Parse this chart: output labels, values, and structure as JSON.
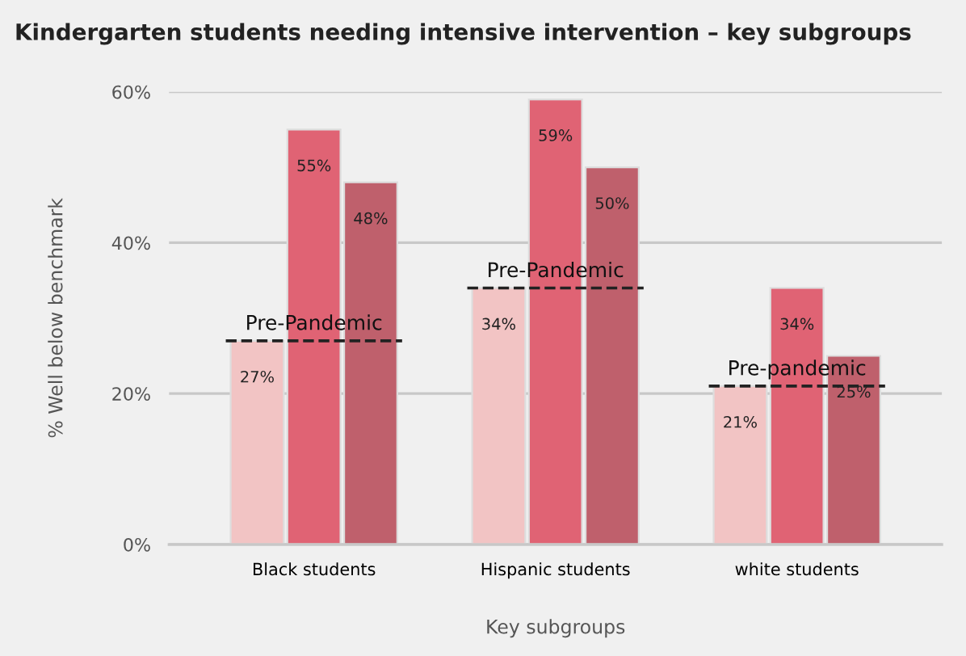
{
  "chart_data": {
    "type": "bar",
    "title": "Kindergarten students needing intensive intervention – key subgroups",
    "xlabel": "Key subgroups",
    "ylabel": "% Well below benchmark",
    "categories": [
      "Black students",
      "Hispanic students",
      "white students"
    ],
    "series": [
      {
        "color": "#f2c4c4",
        "values": [
          27,
          34,
          21
        ],
        "value_labels": [
          "27%",
          "34%",
          "21%"
        ]
      },
      {
        "color": "#e06374",
        "values": [
          55,
          59,
          34
        ],
        "value_labels": [
          "55%",
          "59%",
          "34%"
        ]
      },
      {
        "color": "#bf606c",
        "values": [
          48,
          50,
          25
        ],
        "value_labels": [
          "48%",
          "50%",
          "25%"
        ]
      }
    ],
    "ylim": [
      0,
      60
    ],
    "yticks": [
      {
        "value": 0,
        "label": "0%"
      },
      {
        "value": 20,
        "label": "20%"
      },
      {
        "value": 40,
        "label": "40%"
      },
      {
        "value": 60,
        "label": "60%"
      }
    ],
    "grid": "y",
    "ref_lines": [
      {
        "axis": "y",
        "value": 27,
        "label": "Pre-Pandemic",
        "color": "#222222",
        "line_style": "dashed"
      },
      {
        "axis": "y",
        "value": 34,
        "label": "Pre-Pandemic",
        "color": "#222222",
        "line_style": "dashed"
      },
      {
        "axis": "y",
        "value": 21,
        "label": "Pre-pandemic",
        "color": "#222222",
        "line_style": "dashed"
      }
    ]
  }
}
